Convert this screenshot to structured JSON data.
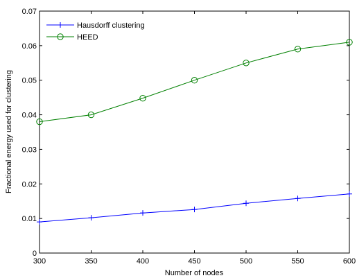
{
  "chart_data": {
    "type": "line",
    "xlabel": "Number of nodes",
    "ylabel": "Fractional energy used for clustering",
    "xlim": [
      300,
      600
    ],
    "ylim": [
      0,
      0.07
    ],
    "x_ticks": [
      300,
      350,
      400,
      450,
      500,
      550,
      600
    ],
    "y_ticks": [
      0,
      0.01,
      0.02,
      0.03,
      0.04,
      0.05,
      0.06,
      0.07
    ],
    "y_tick_labels": [
      "0",
      "0.01",
      "0.02",
      "0.03",
      "0.04",
      "0.05",
      "0.06",
      "0.07"
    ],
    "grid": false,
    "legend_position": "top-left",
    "x": [
      300,
      350,
      400,
      450,
      500,
      550,
      600
    ],
    "series": [
      {
        "name": "Hausdorff clustering",
        "color": "#0000ff",
        "marker": "plus",
        "values": [
          0.009,
          0.0102,
          0.0116,
          0.0126,
          0.0144,
          0.0158,
          0.0171
        ]
      },
      {
        "name": "HEED",
        "color": "#008000",
        "marker": "circle",
        "values": [
          0.038,
          0.04,
          0.0448,
          0.05,
          0.055,
          0.059,
          0.061
        ]
      }
    ]
  }
}
